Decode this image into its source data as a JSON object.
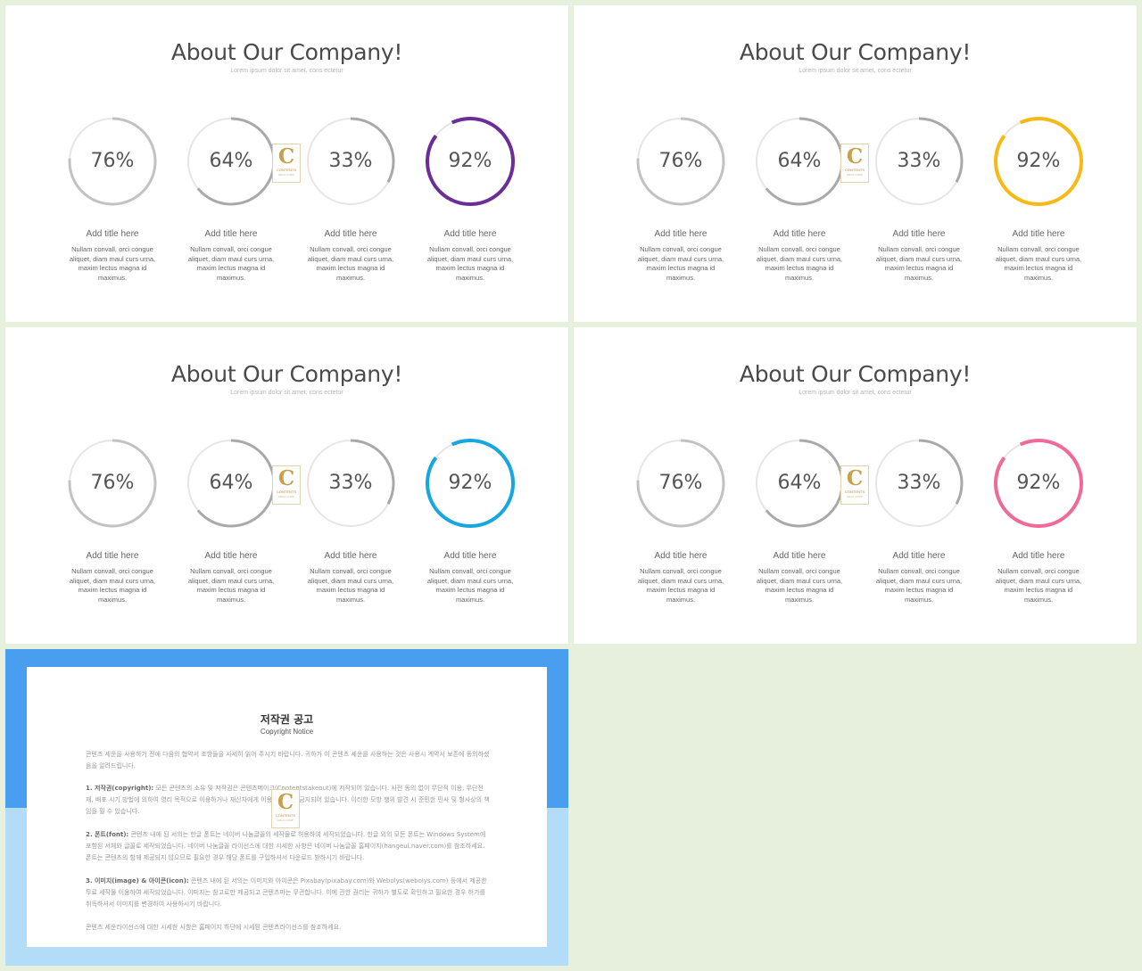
{
  "slides": [
    {
      "title": "About Our Company!",
      "subtitle": "Lorem ipsum dolor sit amet, cons ectetur",
      "accent": "#6a2e98",
      "items": [
        {
          "value": 76,
          "label": "76%",
          "title": "Add title here",
          "desc": "Nullam convall, orci congue aliquet, diam maul curs urna, maxim lectus magna id maximus."
        },
        {
          "value": 64,
          "label": "64%",
          "title": "Add title here",
          "desc": "Nullam convall, orci congue aliquet, diam maul curs urna, maxim lectus magna id maximus."
        },
        {
          "value": 33,
          "label": "33%",
          "title": "Add title here",
          "desc": "Nullam convall, orci congue aliquet, diam maul curs urna, maxim lectus magna id maximus."
        },
        {
          "value": 92,
          "label": "92%",
          "title": "Add title here",
          "desc": "Nullam convall, orci congue aliquet, diam maul curs urna, maxim lectus magna id maximus."
        }
      ]
    },
    {
      "title": "About Our Company!",
      "subtitle": "Lorem ipsum dolor sit amet, cons ectetur",
      "accent": "#f6b916",
      "items": [
        {
          "value": 76,
          "label": "76%",
          "title": "Add title here",
          "desc": "Nullam convall, orci congue aliquet, diam maul curs urna, maxim lectus magna id maximus."
        },
        {
          "value": 64,
          "label": "64%",
          "title": "Add title here",
          "desc": "Nullam convall, orci congue aliquet, diam maul curs urna, maxim lectus magna id maximus."
        },
        {
          "value": 33,
          "label": "33%",
          "title": "Add title here",
          "desc": "Nullam convall, orci congue aliquet, diam maul curs urna, maxim lectus magna id maximus."
        },
        {
          "value": 92,
          "label": "92%",
          "title": "Add title here",
          "desc": "Nullam convall, orci congue aliquet, diam maul curs urna, maxim lectus magna id maximus."
        }
      ]
    },
    {
      "title": "About Our Company!",
      "subtitle": "Lorem ipsum dolor sit amet, cons ectetur",
      "accent": "#16a6e0",
      "items": [
        {
          "value": 76,
          "label": "76%",
          "title": "Add title here",
          "desc": "Nullam convall, orci congue aliquet, diam maul curs urna, maxim lectus magna id maximus."
        },
        {
          "value": 64,
          "label": "64%",
          "title": "Add title here",
          "desc": "Nullam convall, orci congue aliquet, diam maul curs urna, maxim lectus magna id maximus."
        },
        {
          "value": 33,
          "label": "33%",
          "title": "Add title here",
          "desc": "Nullam convall, orci congue aliquet, diam maul curs urna, maxim lectus magna id maximus."
        },
        {
          "value": 92,
          "label": "92%",
          "title": "Add title here",
          "desc": "Nullam convall, orci congue aliquet, diam maul curs urna, maxim lectus magna id maximus."
        }
      ]
    },
    {
      "title": "About Our Company!",
      "subtitle": "Lorem ipsum dolor sit amet, cons ectetur",
      "accent": "#ef6a99",
      "items": [
        {
          "value": 76,
          "label": "76%",
          "title": "Add title here",
          "desc": "Nullam convall, orci congue aliquet, diam maul curs urna, maxim lectus magna id maximus."
        },
        {
          "value": 64,
          "label": "64%",
          "title": "Add title here",
          "desc": "Nullam convall, orci congue aliquet, diam maul curs urna, maxim lectus magna id maximus."
        },
        {
          "value": 33,
          "label": "33%",
          "title": "Add title here",
          "desc": "Nullam convall, orci congue aliquet, diam maul curs urna, maxim lectus magna id maximus."
        },
        {
          "value": 92,
          "label": "92%",
          "title": "Add title here",
          "desc": "Nullam convall, orci congue aliquet, diam maul curs urna, maxim lectus magna id maximus."
        }
      ]
    }
  ],
  "ring_colors": {
    "ring1": "#c2c2c2",
    "ring2": "#a9a9a9",
    "ring3": "#a9a9a9",
    "track": "#e6e6e6"
  },
  "logo": {
    "letter": "C",
    "text": "CONTENTS",
    "subtext": "MAUL CORP"
  },
  "copyright": {
    "title": "저작권 공고",
    "subtitle": "Copyright Notice",
    "top_color": "#4a9ef0",
    "bottom_color": "#b3dcf8",
    "p1": "콘텐츠 세운을 사용하기 전에 다음의 협약서 조항들을 사세히 읽어 주시기 바랍니다. 귀하가 이 콘텐츠 세운을 사용하는 것은 사용시 계약서 보존에 동의하셨음을 알려드립니다.",
    "p2_head": "1. 저작권(copyright):",
    "p2": " 모든 콘텐츠의 소유 및 저작권은 콘텐츠메이크(Contentstakeout)에 저작되어 있습니다. 사전 동의 없이 무단적 이용, 무단전재, 배포 시기 방법에 의하여 영리 목적으로 이용하거나 재산자에게 이용하는 것은 금지되어 있습니다. 이러한 모방 행위 발견 시 준민한 민사 및 형사상의 책임을 필 수 있습니다.",
    "p3_head": "2. 폰트(font):",
    "p3": " 콘텐츠 내에 된 서의는 한글 폰트는 네이버 나눔글꼴의 세작물로 허용하여 세작되었습니다. 한글 외의 모든 폰트는 Windows System에 포함된 서체와 글꼴로 세작되었습니다. 네이버 나눔글꼴 라이선스에 대한 시세한 사항은 네이버 나눔글꼴 홈페이지(hangeul.naver.com)를 참조하세요. 폰트는 콘텐츠의 함께 제공되지 않으므로 필요한 경우 해당 폰트를 구입하셔서 다운로드 받하시기 바랍니다.",
    "p4_head": "3. 이미지(image) & 아이콘(icon):",
    "p4": " 콘텐츠 내에 된 서의는 이미지와 아이콘은 Pixabay(pixabay.com)와 Webolys(webolys.com) 등에서 제공한 무료 세작물 이용하여 세작되었습니다. 이미지는 참고로만 제공되고 콘텐츠마는 무관합니다. 이에 관한 권리는 귀하가 별도로 확인하고 필요한 경우 허가를 취득하셔서 이미지를 변경하여 사용하시기 바랍니다.",
    "p5": "콘텐츠 세운라이선스에 대한 시세한 사항은 홈페이지 하단에 시세된 콘텐츠라이선스를 참조하세요."
  }
}
